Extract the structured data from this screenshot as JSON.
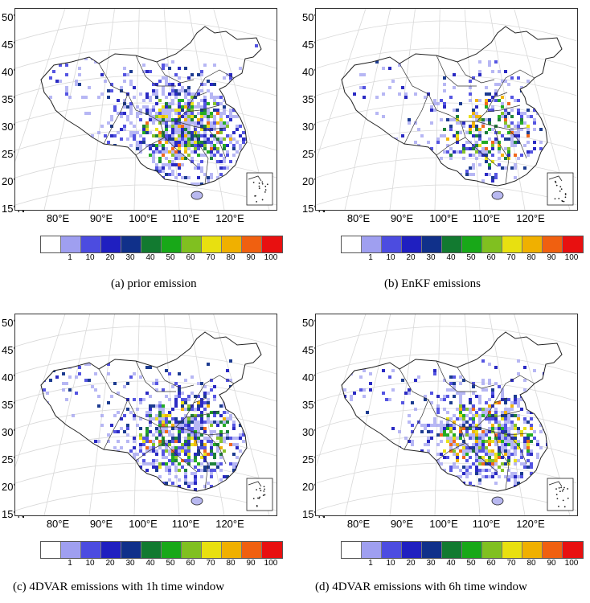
{
  "latitude_labels": [
    "50°N",
    "45°N",
    "40°N",
    "35°N",
    "30°N",
    "25°N",
    "20°N",
    "15°N"
  ],
  "longitude_labels": [
    "80°E",
    "90°E",
    "100°E",
    "110°E",
    "120°E"
  ],
  "colorbar": {
    "colors": [
      "#ffffff",
      "#9f9ff0",
      "#4c4ce0",
      "#1f1fc0",
      "#10308a",
      "#127a30",
      "#18a818",
      "#80c020",
      "#e8e010",
      "#f0b000",
      "#f06010",
      "#e81010"
    ],
    "tick_labels": [
      "1",
      "10",
      "20",
      "30",
      "40",
      "50",
      "60",
      "70",
      "80",
      "90",
      "100"
    ]
  },
  "panels": [
    {
      "caption": "(a) prior emission",
      "density": 0.95
    },
    {
      "caption": "(b) EnKF emissions",
      "density": 0.55
    },
    {
      "caption": "(c) 4DVAR emissions with 1h time window",
      "density": 0.85
    },
    {
      "caption": "(d) 4DVAR emissions with 6h time window",
      "density": 0.9
    }
  ]
}
